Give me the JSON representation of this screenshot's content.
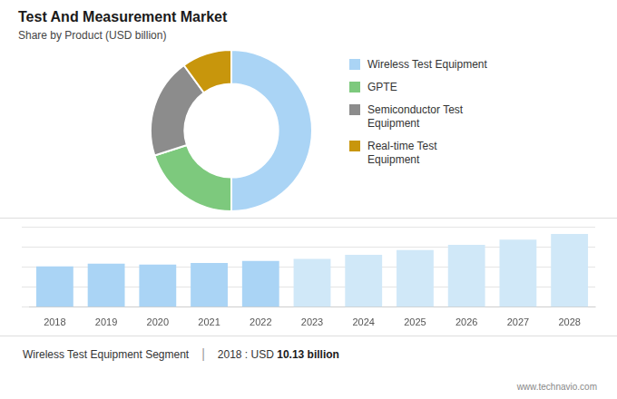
{
  "chart_data": [
    {
      "type": "donut",
      "title": "Test And Measurement Market",
      "subtitle": "Share by Product (USD billion)",
      "categories": [
        "Wireless Test Equipment",
        "GPTE",
        "Semiconductor Test\nEquipment",
        "Real-time Test\nEquipment"
      ],
      "values": [
        50,
        20,
        20,
        10
      ],
      "colors": [
        "#aad4f5",
        "#7dc97d",
        "#8c8c8c",
        "#c8960c"
      ],
      "legend": "right"
    },
    {
      "type": "bar",
      "categories": [
        "2018",
        "2019",
        "2020",
        "2021",
        "2022",
        "2023",
        "2024",
        "2025",
        "2026",
        "2027",
        "2028"
      ],
      "values": [
        10.13,
        10.8,
        10.6,
        11.0,
        11.5,
        12.0,
        13.0,
        14.2,
        15.5,
        16.8,
        18.2
      ],
      "colors": [
        "#aad4f5",
        "#aad4f5",
        "#aad4f5",
        "#aad4f5",
        "#aad4f5",
        "#d0e8f8",
        "#d0e8f8",
        "#d0e8f8",
        "#d0e8f8",
        "#d0e8f8",
        "#d0e8f8"
      ],
      "ylim": [
        0,
        20
      ],
      "yticks": [
        0,
        5,
        10,
        15,
        20
      ],
      "grid": true,
      "tick_labels": "x",
      "annotations": [
        "Wireless Test Equipment Segment",
        "|",
        "2018 : USD ",
        "10.13 billion",
        "www.technavio.com"
      ]
    }
  ]
}
